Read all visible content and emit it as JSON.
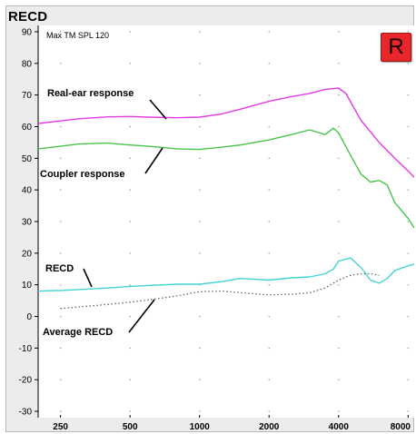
{
  "window": {
    "title": "RECD"
  },
  "badge": {
    "label": "R",
    "color": "#e8262c"
  },
  "chart_data": {
    "type": "line",
    "title": "",
    "xlabel": "",
    "ylabel": "",
    "xscale": "log",
    "xlim": [
      200,
      8500
    ],
    "ylim": [
      -32,
      92
    ],
    "xticks": [
      250,
      500,
      1000,
      2000,
      4000,
      8000
    ],
    "yticks": [
      90,
      80,
      70,
      60,
      50,
      40,
      30,
      20,
      10,
      0,
      -10,
      -20,
      -30
    ],
    "grid": "dotted",
    "annotations": [
      {
        "text": "Max TM SPL 120"
      },
      {
        "text": "Real-ear response"
      },
      {
        "text": "Coupler response"
      },
      {
        "text": "RECD"
      },
      {
        "text": "Average RECD"
      }
    ],
    "series": [
      {
        "name": "Real-ear response",
        "color": "#e43be4",
        "style": "solid",
        "x": [
          200,
          250,
          300,
          400,
          500,
          600,
          800,
          1000,
          1250,
          1500,
          2000,
          2500,
          3000,
          3500,
          4000,
          4300,
          5000,
          6000,
          7000,
          8000,
          8500
        ],
        "y": [
          61,
          61.8,
          62.5,
          63.1,
          63.2,
          63,
          62.8,
          63,
          64,
          65.5,
          68,
          69.5,
          70.5,
          71.8,
          72.2,
          70.5,
          62,
          55,
          50,
          46,
          44
        ]
      },
      {
        "name": "Coupler response",
        "color": "#48c448",
        "style": "solid",
        "x": [
          200,
          250,
          300,
          400,
          500,
          600,
          800,
          1000,
          1250,
          1500,
          2000,
          2500,
          3000,
          3500,
          3800,
          4000,
          4500,
          5000,
          5500,
          6000,
          6500,
          7000,
          8000,
          8500
        ],
        "y": [
          53,
          53.8,
          54.5,
          54.8,
          54.2,
          53.8,
          53,
          52.8,
          53.5,
          54.2,
          55.8,
          57.5,
          59,
          57.5,
          59.5,
          58,
          51,
          45,
          42.5,
          43,
          41.5,
          36,
          31,
          28
        ]
      },
      {
        "name": "RECD",
        "color": "#43d3d3",
        "style": "solid",
        "x": [
          200,
          250,
          300,
          400,
          500,
          600,
          800,
          1000,
          1250,
          1500,
          2000,
          2500,
          3000,
          3500,
          3800,
          4000,
          4500,
          5000,
          5500,
          6000,
          6500,
          7000,
          8000,
          8500
        ],
        "y": [
          8,
          8.2,
          8.5,
          9,
          9.5,
          9.8,
          10.2,
          10.2,
          11,
          12,
          11.5,
          12.2,
          12.5,
          13.5,
          15,
          17.5,
          18.5,
          15.5,
          11.5,
          10.5,
          12,
          14.5,
          16,
          16.5
        ]
      },
      {
        "name": "Average RECD",
        "color": "#666666",
        "style": "dotted",
        "x": [
          250,
          300,
          400,
          500,
          600,
          800,
          1000,
          1250,
          1500,
          2000,
          2500,
          3000,
          3500,
          4000,
          4500,
          5000,
          5500,
          6000
        ],
        "y": [
          2.5,
          3,
          3.8,
          4.5,
          5.2,
          6.5,
          7.8,
          8,
          7.5,
          6.8,
          7,
          7.5,
          9,
          11.5,
          13,
          13.5,
          13.5,
          13
        ]
      }
    ]
  }
}
